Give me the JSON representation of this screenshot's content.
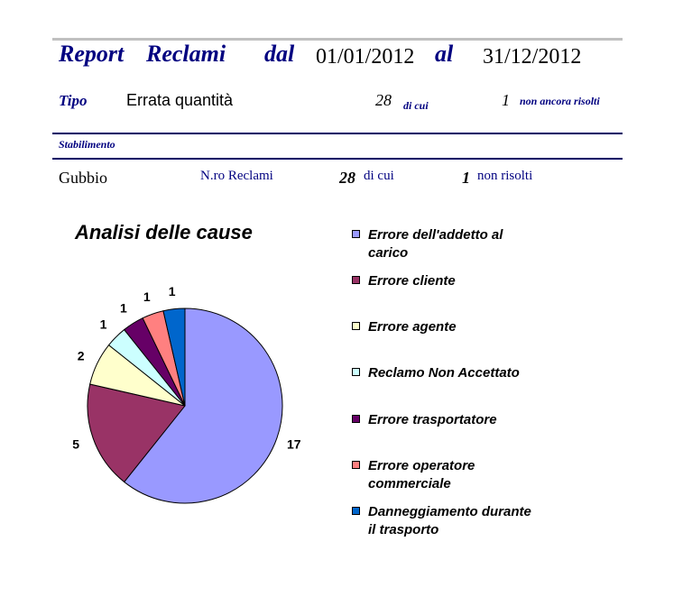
{
  "report": {
    "title_report": "Report",
    "title_reclami": "Reclami",
    "label_dal": "dal",
    "date_from": "01/01/2012",
    "label_al": "al",
    "date_to": "31/12/2012"
  },
  "tipo": {
    "label": "Tipo",
    "value": "Errata quantità",
    "count": "28",
    "di_cui": "di cui",
    "unresolved": "1",
    "unresolved_label": "non ancora risolti"
  },
  "stabilimento": {
    "label": "Stabilimento",
    "name": "Gubbio",
    "nro_label": "N.ro Reclami",
    "count": "28",
    "di_cui": "di cui",
    "unresolved": "1",
    "unresolved_label": "non risolti"
  },
  "chart_data": {
    "type": "pie",
    "title": "Analisi delle cause",
    "slices": [
      {
        "label": "Errore dell'addetto al carico",
        "value": 17,
        "color": "#9999ff"
      },
      {
        "label": "Errore cliente",
        "value": 5,
        "color": "#993366"
      },
      {
        "label": "Errore agente",
        "value": 2,
        "color": "#ffffcc"
      },
      {
        "label": "Reclamo Non Accettato",
        "value": 1,
        "color": "#ccffff"
      },
      {
        "label": "Errore trasportatore",
        "value": 1,
        "color": "#660066"
      },
      {
        "label": "Errore operatore commerciale",
        "value": 1,
        "color": "#ff8080"
      },
      {
        "label": "Danneggiamento durante il trasporto",
        "value": 1,
        "color": "#0066cc"
      }
    ],
    "legend_position": "right",
    "data_labels": true
  }
}
